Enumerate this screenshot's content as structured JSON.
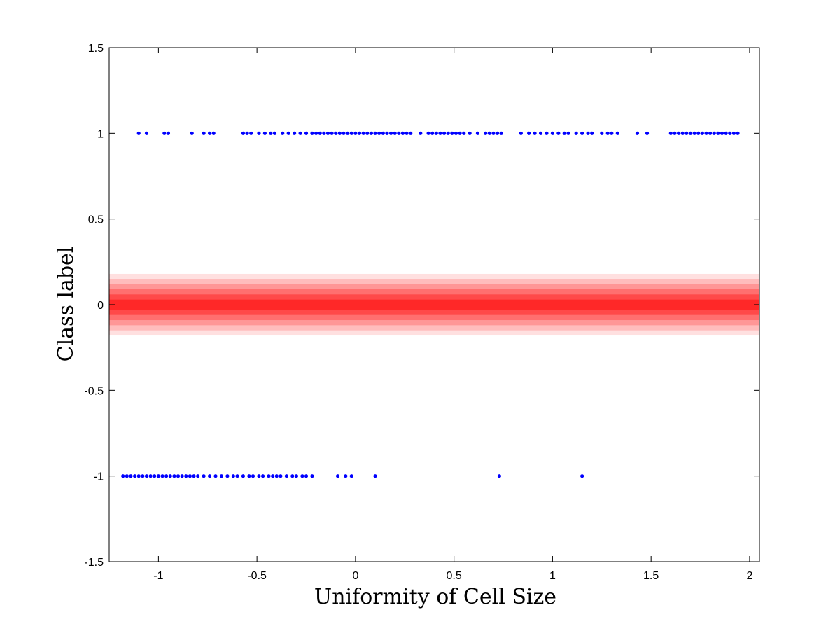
{
  "chart_data": {
    "type": "scatter",
    "xlabel": "Uniformity of Cell Size",
    "ylabel": "Class label",
    "xlim": [
      -1.25,
      2.05
    ],
    "ylim": [
      -1.5,
      1.5
    ],
    "x_ticks": [
      "-1",
      "-0.5",
      "0",
      "0.5",
      "1",
      "1.5",
      "2"
    ],
    "y_ticks": [
      "1.5",
      "1",
      "0.5",
      "0",
      "-0.5",
      "-1",
      "-1.5"
    ],
    "grid": false,
    "point_color": "#0000ff",
    "band_color": "#ff0000",
    "band": {
      "center": 0,
      "levels": [
        {
          "half_width": 0.18,
          "opacity": 0.12
        },
        {
          "half_width": 0.15,
          "opacity": 0.16
        },
        {
          "half_width": 0.12,
          "opacity": 0.2
        },
        {
          "half_width": 0.09,
          "opacity": 0.26
        },
        {
          "half_width": 0.06,
          "opacity": 0.34
        },
        {
          "half_width": 0.03,
          "opacity": 0.45
        }
      ]
    },
    "series": [
      {
        "y": 1,
        "x": [
          -1.1,
          -1.06,
          -0.97,
          -0.95,
          -0.83,
          -0.77,
          -0.74,
          -0.72,
          -0.57,
          -0.55,
          -0.53,
          -0.49,
          -0.46,
          -0.43,
          -0.41,
          -0.37,
          -0.34,
          -0.31,
          -0.28,
          -0.25,
          -0.22,
          -0.2,
          -0.18,
          -0.16,
          -0.14,
          -0.12,
          -0.1,
          -0.08,
          -0.06,
          -0.04,
          -0.02,
          0.0,
          0.02,
          0.04,
          0.06,
          0.08,
          0.1,
          0.12,
          0.14,
          0.16,
          0.18,
          0.2,
          0.22,
          0.24,
          0.26,
          0.28,
          0.33,
          0.37,
          0.39,
          0.41,
          0.43,
          0.45,
          0.47,
          0.49,
          0.51,
          0.53,
          0.55,
          0.58,
          0.62,
          0.66,
          0.68,
          0.7,
          0.72,
          0.74,
          0.84,
          0.88,
          0.91,
          0.94,
          0.97,
          1.0,
          1.03,
          1.06,
          1.08,
          1.12,
          1.15,
          1.18,
          1.2,
          1.25,
          1.28,
          1.3,
          1.33,
          1.43,
          1.48,
          1.6,
          1.62,
          1.64,
          1.66,
          1.68,
          1.7,
          1.72,
          1.74,
          1.76,
          1.78,
          1.8,
          1.82,
          1.84,
          1.86,
          1.88,
          1.9,
          1.92,
          1.94
        ]
      },
      {
        "y": -1,
        "x": [
          -1.18,
          -1.16,
          -1.14,
          -1.12,
          -1.1,
          -1.08,
          -1.06,
          -1.04,
          -1.02,
          -1.0,
          -0.98,
          -0.96,
          -0.94,
          -0.92,
          -0.9,
          -0.88,
          -0.86,
          -0.84,
          -0.82,
          -0.8,
          -0.77,
          -0.74,
          -0.71,
          -0.68,
          -0.65,
          -0.62,
          -0.6,
          -0.57,
          -0.54,
          -0.52,
          -0.49,
          -0.47,
          -0.44,
          -0.42,
          -0.4,
          -0.38,
          -0.35,
          -0.32,
          -0.3,
          -0.27,
          -0.25,
          -0.22,
          -0.09,
          -0.05,
          -0.02,
          0.1,
          0.73,
          1.15
        ]
      }
    ]
  }
}
